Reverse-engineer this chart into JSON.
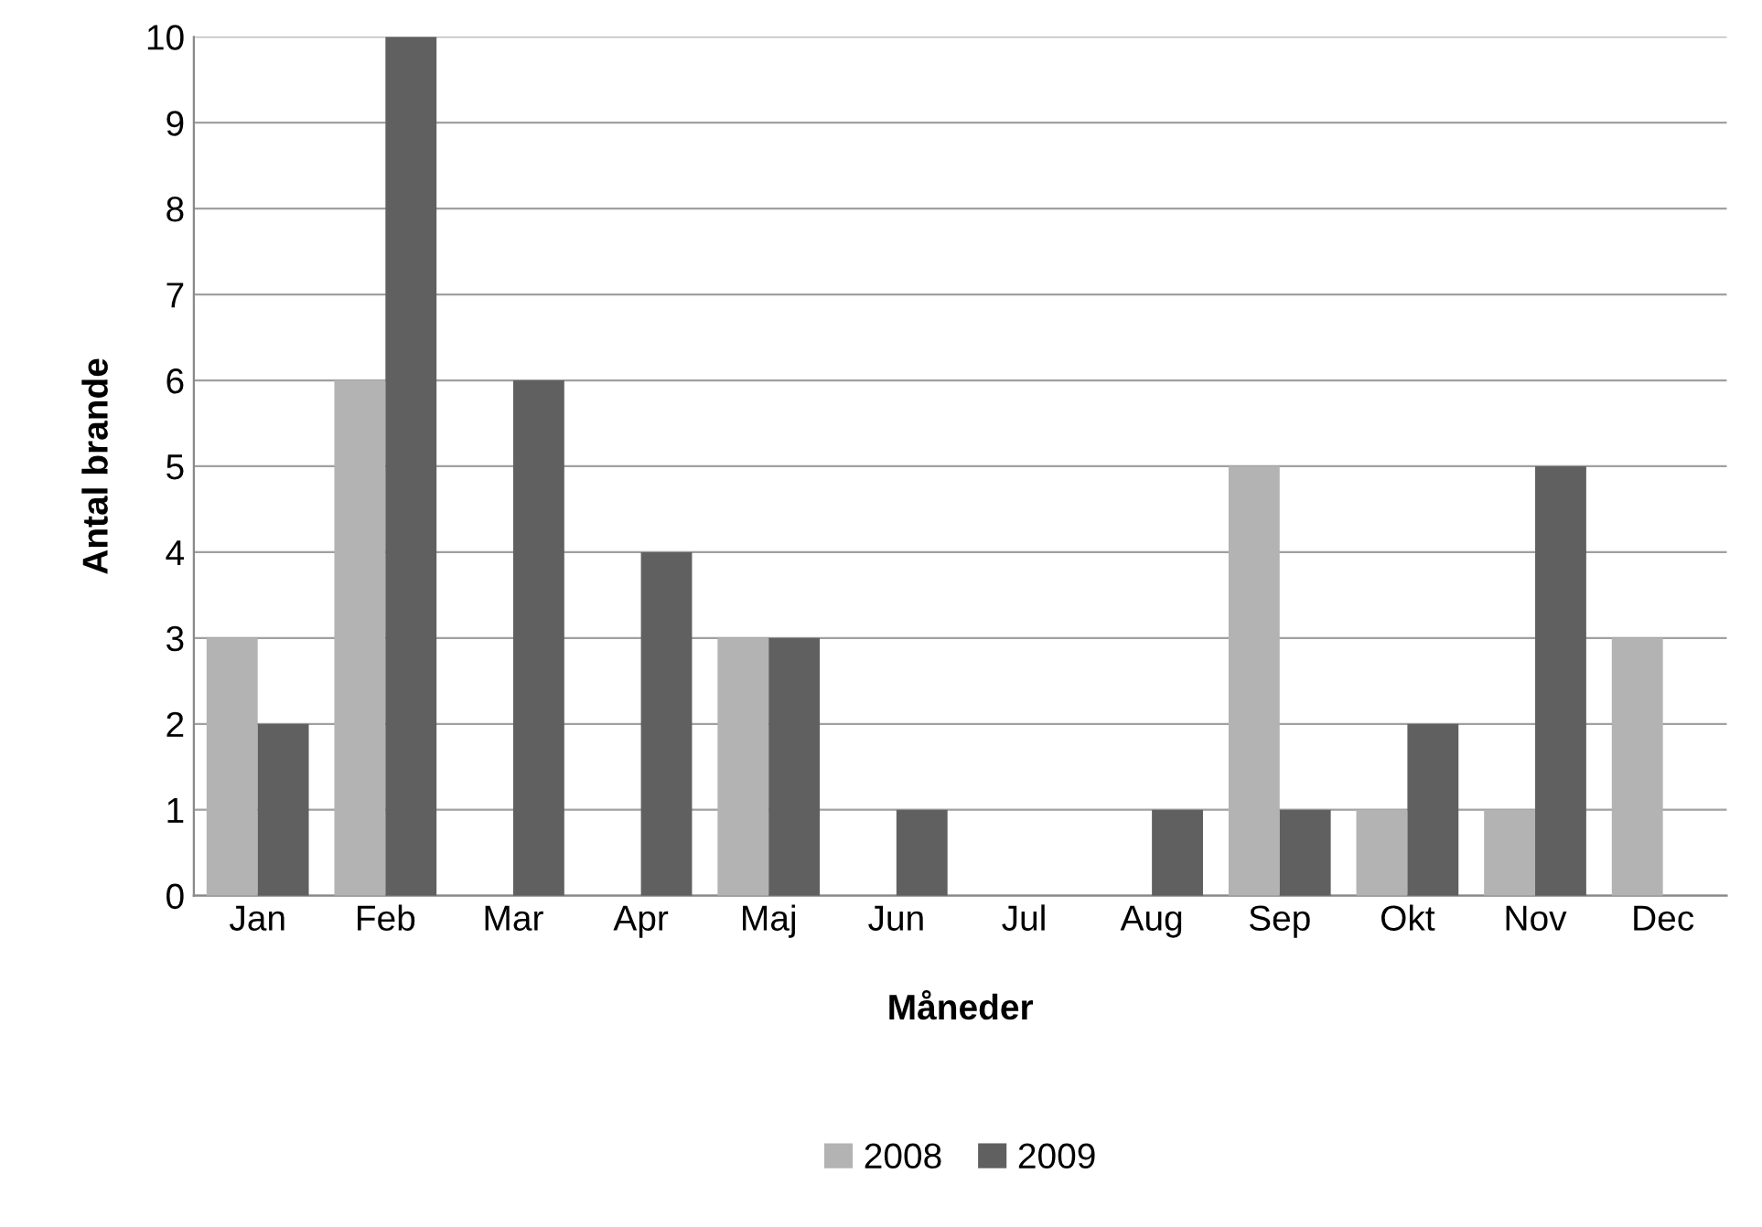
{
  "chart_data": {
    "type": "bar",
    "xlabel": "Måneder",
    "ylabel": "Antal brande",
    "categories": [
      "Jan",
      "Feb",
      "Mar",
      "Apr",
      "Maj",
      "Jun",
      "Jul",
      "Aug",
      "Sep",
      "Okt",
      "Nov",
      "Dec"
    ],
    "series": [
      {
        "name": "2008",
        "color": "#b3b3b3",
        "values": [
          3,
          6,
          0,
          0,
          3,
          0,
          0,
          0,
          5,
          1,
          1,
          3
        ]
      },
      {
        "name": "2009",
        "color": "#606060",
        "values": [
          2,
          10,
          6,
          4,
          3,
          1,
          0,
          1,
          1,
          2,
          5,
          0
        ]
      }
    ],
    "ylim": [
      0,
      10
    ],
    "yticks": [
      0,
      1,
      2,
      3,
      4,
      5,
      6,
      7,
      8,
      9,
      10
    ],
    "grid": "y",
    "legend": "bottom"
  }
}
